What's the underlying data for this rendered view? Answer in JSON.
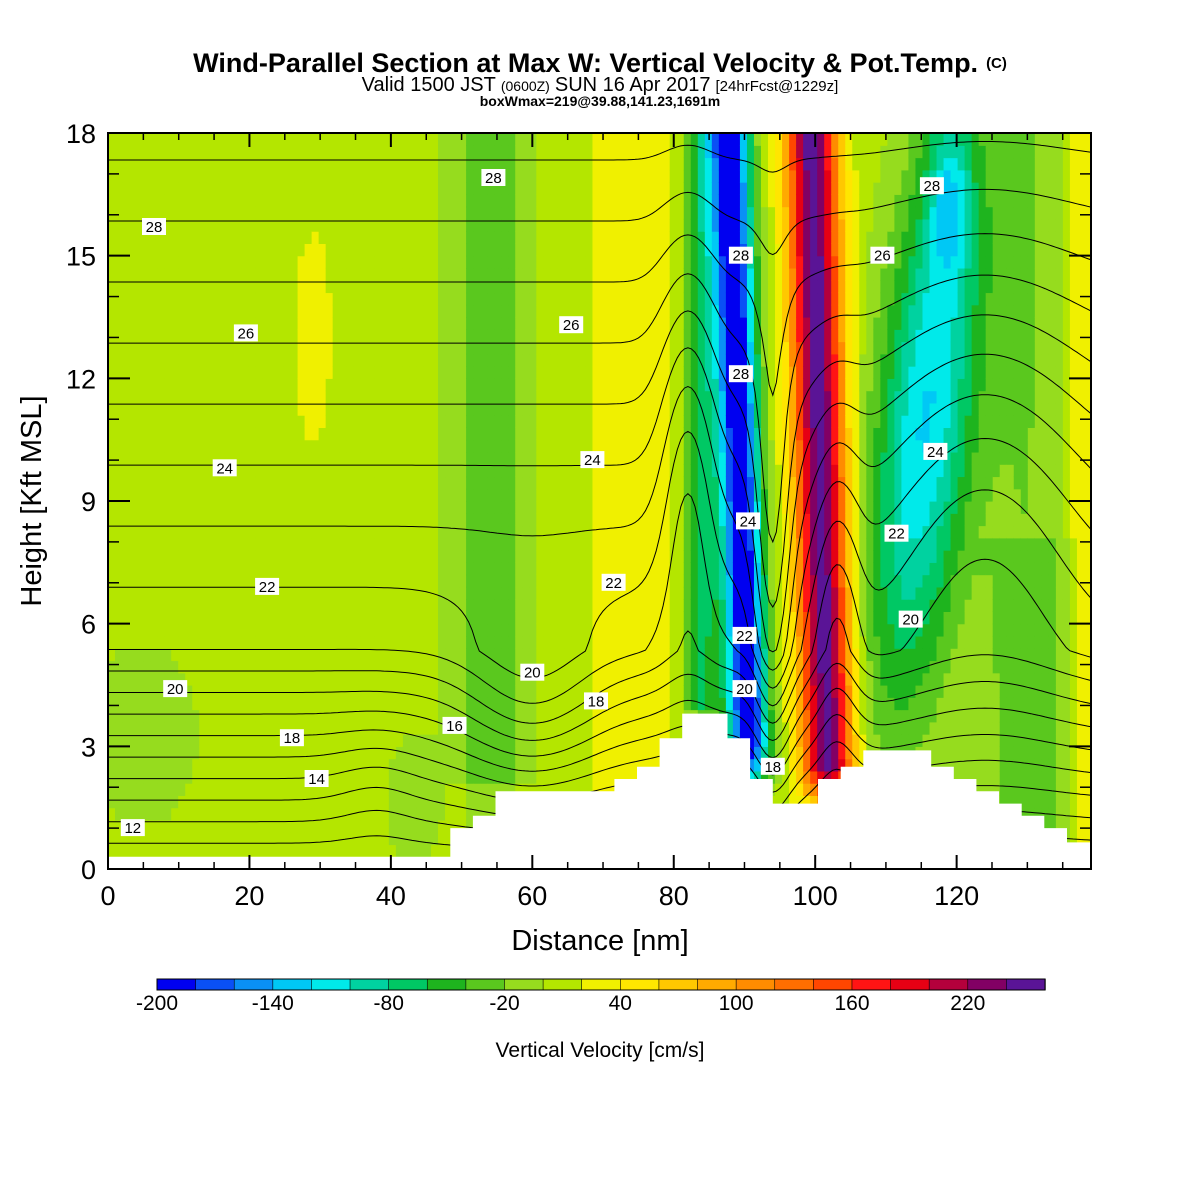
{
  "chart_data": {
    "type": "heatmap",
    "title_main": "Wind-Parallel Section at Max W: Vertical Velocity & Pot.Temp.",
    "title_mark": "(C)",
    "subtitle_part1": "Valid 1500 JST",
    "subtitle_part2": "(0600Z)",
    "subtitle_part3": "SUN 16 Apr 2017",
    "subtitle_part4": "[24hrFcst@1229z]",
    "subtitle2": "boxWmax=219@39.88,141.23,1691m",
    "xlabel": "Distance [nm]",
    "ylabel": "Height [Kft MSL]",
    "xlim": [
      0,
      139
    ],
    "ylim": [
      0,
      18
    ],
    "x_ticks": [
      "0",
      "20",
      "40",
      "60",
      "80",
      "100",
      "120"
    ],
    "y_ticks": [
      "0",
      "3",
      "6",
      "9",
      "12",
      "15",
      "18"
    ],
    "colorbar": {
      "label": "Vertical Velocity [cm/s]",
      "tick_labels": [
        "-200",
        "-140",
        "-80",
        "-20",
        "40",
        "100",
        "160",
        "220"
      ],
      "levels": [
        -200,
        -180,
        -160,
        -140,
        -120,
        -100,
        -80,
        -60,
        -40,
        -20,
        0,
        20,
        40,
        60,
        80,
        100,
        120,
        140,
        160,
        180,
        200,
        220,
        240,
        260
      ],
      "colors": [
        "#0000f0",
        "#0a50f5",
        "#0a90f5",
        "#00c8f5",
        "#00eaea",
        "#00d2a0",
        "#00c864",
        "#1eb41e",
        "#5ac81e",
        "#96dc1e",
        "#b4e600",
        "#f0f000",
        "#ffe600",
        "#ffc800",
        "#ffaa00",
        "#ff8c00",
        "#ff6e00",
        "#ff4600",
        "#ff1414",
        "#e60014",
        "#b4003c",
        "#820064",
        "#5a1496"
      ]
    },
    "contour_labels": [
      {
        "text": "28",
        "x": 6.5,
        "y": 15.7
      },
      {
        "text": "26",
        "x": 19.5,
        "y": 13.1
      },
      {
        "text": "24",
        "x": 16.5,
        "y": 9.8
      },
      {
        "text": "22",
        "x": 22.5,
        "y": 6.9
      },
      {
        "text": "20",
        "x": 9.5,
        "y": 4.4
      },
      {
        "text": "18",
        "x": 26.0,
        "y": 3.2
      },
      {
        "text": "14",
        "x": 29.5,
        "y": 2.2
      },
      {
        "text": "12",
        "x": 3.5,
        "y": 1.0
      },
      {
        "text": "16",
        "x": 49.0,
        "y": 3.5
      },
      {
        "text": "28",
        "x": 54.5,
        "y": 16.9
      },
      {
        "text": "26",
        "x": 65.5,
        "y": 13.3
      },
      {
        "text": "24",
        "x": 68.5,
        "y": 10.0
      },
      {
        "text": "22",
        "x": 71.5,
        "y": 7.0
      },
      {
        "text": "20",
        "x": 60.0,
        "y": 4.8
      },
      {
        "text": "18",
        "x": 69.0,
        "y": 4.1
      },
      {
        "text": "28",
        "x": 89.5,
        "y": 15.0
      },
      {
        "text": "28",
        "x": 89.5,
        "y": 12.1
      },
      {
        "text": "24",
        "x": 90.5,
        "y": 8.5
      },
      {
        "text": "22",
        "x": 90.0,
        "y": 5.7
      },
      {
        "text": "20",
        "x": 90.0,
        "y": 4.4
      },
      {
        "text": "18",
        "x": 94.0,
        "y": 2.5
      },
      {
        "text": "26",
        "x": 109.5,
        "y": 15.0
      },
      {
        "text": "28",
        "x": 116.5,
        "y": 16.7
      },
      {
        "text": "24",
        "x": 117.0,
        "y": 10.2
      },
      {
        "text": "22",
        "x": 111.5,
        "y": 8.2
      },
      {
        "text": "20",
        "x": 113.5,
        "y": 6.1
      }
    ]
  }
}
